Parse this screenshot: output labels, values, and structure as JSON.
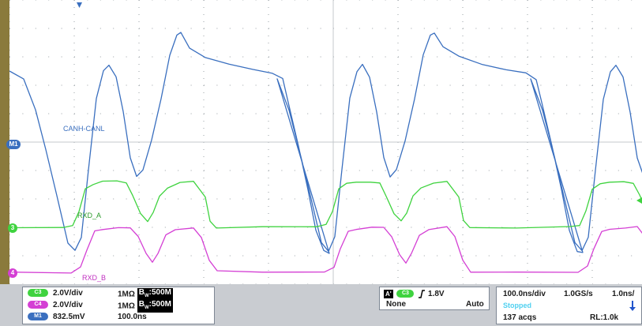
{
  "colors": {
    "ch_canh": "#3a6fbf",
    "ch_rxd_a": "#3fd33f",
    "ch_rxd_b": "#d43fd4",
    "ch1_marker": "#3a6fbf",
    "grid": "#9aa0a6",
    "bezel": "#8a7a3c"
  },
  "trace_labels": {
    "canh": "CANH-CANL",
    "rxd_a": "RXD_A",
    "rxd_b": "RXD_B"
  },
  "markers": {
    "m1": "M1",
    "ch3": "3",
    "ch4": "4"
  },
  "channels": [
    {
      "chip": "C3",
      "scale": "2.0V/div",
      "impedance": "1MΩ",
      "bw_prefix": "B",
      "bw_sub": "W",
      "bw_value": ":500M",
      "color": "#3fd33f"
    },
    {
      "chip": "C4",
      "scale": "2.0V/div",
      "impedance": "1MΩ",
      "bw_prefix": "B",
      "bw_sub": "W",
      "bw_value": ":500M",
      "color": "#d43fd4"
    },
    {
      "chip": "M1",
      "scale": "832.5mV",
      "timebase": "100.0ns",
      "color": "#3a6fbf"
    }
  ],
  "trigger": {
    "a_label": "A'",
    "source_chip": "C3",
    "slope_icon": "rising-edge-icon",
    "level": "1.8V",
    "coupling": "None",
    "mode": "Auto"
  },
  "acquisition": {
    "timebase": "100.0ns/div",
    "sample_rate": "1.0GS/s",
    "resolution": "1.0ns/",
    "state": "Stopped",
    "acqs": "137 acqs",
    "record_length": "RL:1.0k"
  }
}
